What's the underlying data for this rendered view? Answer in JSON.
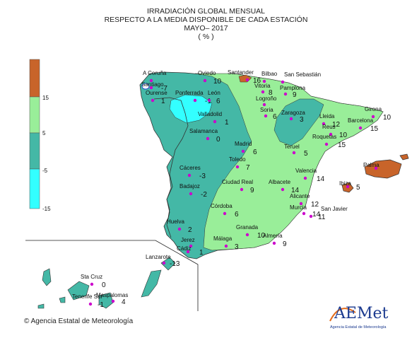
{
  "title": {
    "line1": "IRRADIACIÓN GLOBAL MENSUAL",
    "line2": "RESPECTO A LA MEDIA DISPONIBLE DE CADA ESTACIÓN",
    "line3": "MAYO– 2017",
    "line4": "( % )"
  },
  "legend": {
    "ticks": [
      "15",
      "5",
      "-5",
      "-15"
    ],
    "colors": [
      "#c8642a",
      "#99ee99",
      "#44b8a6",
      "#33ffff"
    ]
  },
  "footer": {
    "copyright_symbol": "©",
    "agency": "Agencia Estatal de Meteorología"
  },
  "logo": {
    "brand": "AEMet",
    "caption": "Agencia Estatal de Meteorología"
  },
  "stations": [
    {
      "name": "A Coruña",
      "value": "",
      "color": "#cc00cc"
    },
    {
      "name": "Santiago",
      "value": "-7",
      "color": "#cc00cc"
    },
    {
      "name": "Ourense",
      "value": "1",
      "color": "#cc00cc"
    },
    {
      "name": "Oviedo",
      "value": "10",
      "color": "#cc00cc"
    },
    {
      "name": "Ponferrada",
      "value": "-1",
      "color": "#cc00cc"
    },
    {
      "name": "León",
      "value": "6",
      "color": "#cc00cc"
    },
    {
      "name": "Santander",
      "value": "16",
      "color": "#cc00cc"
    },
    {
      "name": "Bilbao",
      "value": "",
      "color": "#cc00cc"
    },
    {
      "name": "San Sebastián",
      "value": "",
      "color": "#cc00cc"
    },
    {
      "name": "Vitoria",
      "value": "8",
      "color": "#cc00cc"
    },
    {
      "name": "Pamplona",
      "value": "9",
      "color": "#cc00cc"
    },
    {
      "name": "Logroño",
      "value": "",
      "color": "#cc00cc"
    },
    {
      "name": "Soria",
      "value": "6",
      "color": "#cc00cc"
    },
    {
      "name": "Zaragoza",
      "value": "3",
      "color": "#cc00cc"
    },
    {
      "name": "Lleida",
      "value": "12",
      "color": "#cc00cc"
    },
    {
      "name": "Girona",
      "value": "10",
      "color": "#cc00cc"
    },
    {
      "name": "Barcelona",
      "value": "15",
      "color": "#cc00cc"
    },
    {
      "name": "Reus",
      "value": "10",
      "color": "#cc00cc"
    },
    {
      "name": "Roquetas",
      "value": "15",
      "color": "#cc00cc"
    },
    {
      "name": "Valladolid",
      "value": "1",
      "color": "#cc00cc"
    },
    {
      "name": "Salamanca",
      "value": "0",
      "color": "#cc00cc"
    },
    {
      "name": "Madrid",
      "value": "6",
      "color": "#cc00cc"
    },
    {
      "name": "Teruel",
      "value": "5",
      "color": "#cc00cc"
    },
    {
      "name": "Toledo",
      "value": "7",
      "color": "#cc00cc"
    },
    {
      "name": "Cáceres",
      "value": "-3",
      "color": "#cc00cc"
    },
    {
      "name": "Valencia",
      "value": "14",
      "color": "#cc00cc"
    },
    {
      "name": "Palma",
      "value": "",
      "color": "#cc00cc"
    },
    {
      "name": "Ibiza",
      "value": "5",
      "color": "#cc00cc"
    },
    {
      "name": "Badajoz",
      "value": "-2",
      "color": "#cc00cc"
    },
    {
      "name": "Ciudad Real",
      "value": "9",
      "color": "#cc00cc"
    },
    {
      "name": "Albacete",
      "value": "14",
      "color": "#cc00cc"
    },
    {
      "name": "Alicante",
      "value": "12",
      "color": "#cc00cc"
    },
    {
      "name": "Córdoba",
      "value": "6",
      "color": "#cc00cc"
    },
    {
      "name": "Murcia",
      "value": "14",
      "color": "#cc00cc"
    },
    {
      "name": "San Javier",
      "value": "11",
      "color": "#cc00cc"
    },
    {
      "name": "Huelva",
      "value": "2",
      "color": "#cc00cc"
    },
    {
      "name": "Granada",
      "value": "10",
      "color": "#cc00cc"
    },
    {
      "name": "Jerez",
      "value": "",
      "color": "#cc00cc"
    },
    {
      "name": "Cádiz",
      "value": "1",
      "color": "#cc00cc"
    },
    {
      "name": "Málaga",
      "value": "3",
      "color": "#cc00cc"
    },
    {
      "name": "Almería",
      "value": "9",
      "color": "#cc00cc"
    },
    {
      "name": "Lanzarote",
      "value": "-13",
      "color": "#cc00cc"
    },
    {
      "name": "Sta Cruz",
      "value": "0",
      "color": "#cc00cc"
    },
    {
      "name": "Tenerife Sur",
      "value": "-1",
      "color": "#cc00cc"
    },
    {
      "name": "Maspalomas",
      "value": "4",
      "color": "#cc00cc"
    }
  ]
}
